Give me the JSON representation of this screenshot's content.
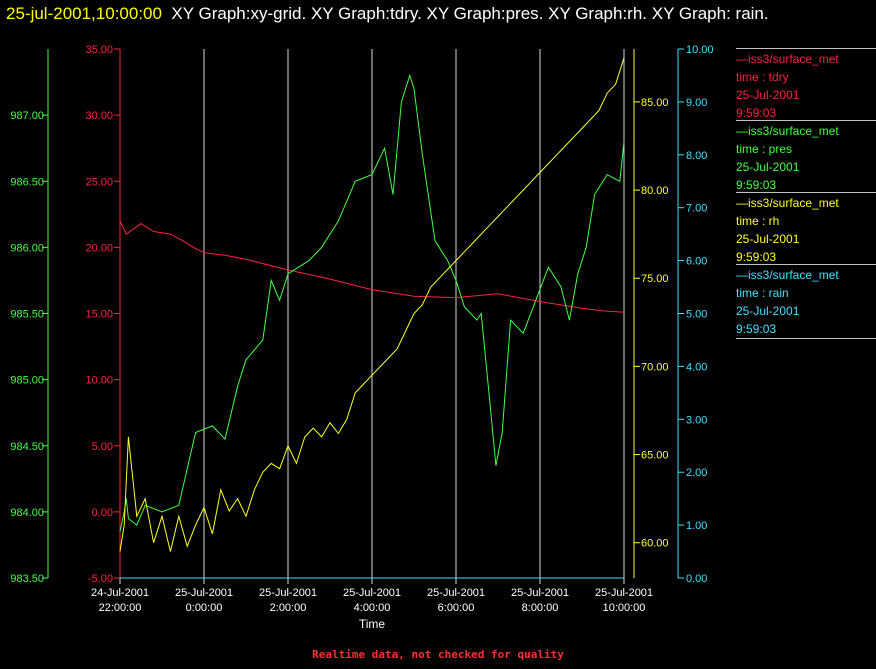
{
  "header": {
    "timestamp": "25-jul-2001,10:00:00",
    "text": "XY Graph:xy-grid.  XY Graph:tdry.  XY Graph:pres.  XY Graph:rh.  XY Graph: rain."
  },
  "footer": "Realtime data, not checked for quality",
  "legend": [
    {
      "line1": "—iss3/surface_met",
      "line2": "time : tdry",
      "line3": "25-Jul-2001",
      "line4": "9:59:03",
      "color": "#ff2040"
    },
    {
      "line1": "—iss3/surface_met",
      "line2": "time : pres",
      "line3": "25-Jul-2001",
      "line4": "9:59:03",
      "color": "#40ff40"
    },
    {
      "line1": "—iss3/surface_met",
      "line2": "time : rh",
      "line3": "25-Jul-2001",
      "line4": "9:59:03",
      "color": "#ffff20"
    },
    {
      "line1": "—iss3/surface_met",
      "line2": "time : rain",
      "line3": "25-Jul-2001",
      "line4": "9:59:03",
      "color": "#40e0ff"
    }
  ],
  "chart_data": {
    "type": "line",
    "xlabel": "Time",
    "grid": true,
    "x_ticks": [
      {
        "line1": "24-Jul-2001",
        "line2": "22:00:00"
      },
      {
        "line1": "25-Jul-2001",
        "line2": "0:00:00"
      },
      {
        "line1": "25-Jul-2001",
        "line2": "2:00:00"
      },
      {
        "line1": "25-Jul-2001",
        "line2": "4:00:00"
      },
      {
        "line1": "25-Jul-2001",
        "line2": "6:00:00"
      },
      {
        "line1": "25-Jul-2001",
        "line2": "8:00:00"
      },
      {
        "line1": "25-Jul-2001",
        "line2": "10:00:00"
      }
    ],
    "x_range_hours": [
      -2,
      10
    ],
    "axes": {
      "tdry": {
        "color": "#ff2040",
        "range": [
          -5,
          35
        ],
        "ticks": [
          "-5.00",
          "0.00",
          "5.00",
          "10.00",
          "15.00",
          "20.00",
          "25.00",
          "30.00",
          "35.00"
        ]
      },
      "pres": {
        "color": "#40ff40",
        "range": [
          983.5,
          987.5
        ],
        "ticks": [
          "983.50",
          "984.00",
          "984.50",
          "985.00",
          "985.50",
          "986.00",
          "986.50",
          "987.00"
        ]
      },
      "rh": {
        "color": "#ffff20",
        "range": [
          58,
          88
        ],
        "ticks": [
          "60.00",
          "65.00",
          "70.00",
          "75.00",
          "80.00",
          "85.00"
        ]
      },
      "rain": {
        "color": "#40e0ff",
        "range": [
          0,
          10
        ],
        "ticks": [
          "0.00",
          "1.00",
          "2.00",
          "3.00",
          "4.00",
          "5.00",
          "6.00",
          "7.00",
          "8.00",
          "9.00",
          "10.00"
        ]
      }
    },
    "series": [
      {
        "name": "iss3/surface_met time : tdry",
        "axis": "tdry",
        "color": "#ff2040",
        "x": [
          -2.0,
          -1.85,
          -1.5,
          -1.2,
          -0.8,
          -0.5,
          -0.2,
          0.0,
          0.5,
          1.0,
          2.0,
          3.0,
          4.0,
          5.0,
          6.0,
          7.0,
          8.0,
          9.0,
          9.5,
          10.0
        ],
        "y": [
          22.0,
          21.0,
          21.8,
          21.2,
          21.0,
          20.5,
          19.9,
          19.6,
          19.4,
          19.1,
          18.3,
          17.6,
          16.8,
          16.3,
          16.2,
          16.5,
          15.9,
          15.4,
          15.2,
          15.1
        ]
      },
      {
        "name": "iss3/surface_met time : pres",
        "axis": "pres",
        "color": "#40ff40",
        "x": [
          -2.0,
          -1.9,
          -1.85,
          -1.8,
          -1.6,
          -1.4,
          -1.0,
          -0.6,
          -0.2,
          0.2,
          0.5,
          0.8,
          1.0,
          1.4,
          1.6,
          1.8,
          2.0,
          2.5,
          2.8,
          3.2,
          3.6,
          4.0,
          4.3,
          4.5,
          4.7,
          4.9,
          5.0,
          5.2,
          5.5,
          5.8,
          6.0,
          6.2,
          6.5,
          6.6,
          6.8,
          6.95,
          7.1,
          7.3,
          7.6,
          7.9,
          8.2,
          8.5,
          8.7,
          8.9,
          9.1,
          9.3,
          9.6,
          9.9,
          10.0
        ],
        "y": [
          983.85,
          984.0,
          984.1,
          983.95,
          983.9,
          984.05,
          984.0,
          984.05,
          984.6,
          984.65,
          984.55,
          984.95,
          985.15,
          985.3,
          985.75,
          985.6,
          985.8,
          985.9,
          986.0,
          986.2,
          986.5,
          986.55,
          986.75,
          986.4,
          987.1,
          987.3,
          987.2,
          986.7,
          986.05,
          985.9,
          985.75,
          985.55,
          985.45,
          985.5,
          984.85,
          984.35,
          984.6,
          985.45,
          985.35,
          985.6,
          985.85,
          985.7,
          985.45,
          985.8,
          986.0,
          986.4,
          986.55,
          986.5,
          986.8
        ]
      },
      {
        "name": "iss3/surface_met time : rh",
        "axis": "rh",
        "color": "#ffff20",
        "x": [
          -2.0,
          -1.9,
          -1.8,
          -1.6,
          -1.4,
          -1.2,
          -1.0,
          -0.8,
          -0.6,
          -0.4,
          -0.2,
          0.0,
          0.2,
          0.4,
          0.6,
          0.8,
          1.0,
          1.2,
          1.4,
          1.6,
          1.8,
          2.0,
          2.2,
          2.4,
          2.6,
          2.8,
          3.0,
          3.2,
          3.4,
          3.6,
          3.8,
          4.0,
          4.2,
          4.4,
          4.6,
          4.8,
          5.0,
          5.2,
          5.4,
          5.6,
          5.8,
          6.0,
          6.2,
          6.4,
          6.6,
          6.8,
          7.0,
          7.2,
          7.4,
          7.6,
          7.8,
          8.0,
          8.2,
          8.4,
          8.6,
          8.8,
          9.0,
          9.2,
          9.4,
          9.6,
          9.8,
          10.0
        ],
        "y": [
          59.5,
          61.0,
          66.0,
          61.5,
          62.5,
          60.0,
          61.5,
          59.5,
          61.5,
          59.8,
          61.0,
          62.0,
          60.5,
          63.0,
          61.8,
          62.5,
          61.5,
          63.0,
          64.0,
          64.5,
          64.2,
          65.5,
          64.5,
          66.0,
          66.5,
          66.0,
          66.8,
          66.2,
          67.0,
          68.5,
          69.0,
          69.5,
          70.0,
          70.5,
          71.0,
          72.0,
          73.0,
          73.5,
          74.5,
          75.0,
          75.5,
          76.0,
          76.5,
          77.0,
          77.5,
          78.0,
          78.5,
          79.0,
          79.5,
          80.0,
          80.5,
          81.0,
          81.5,
          82.0,
          82.5,
          83.0,
          83.5,
          84.0,
          84.5,
          85.5,
          86.0,
          87.5
        ]
      },
      {
        "name": "iss3/surface_met time : rain",
        "axis": "rain",
        "color": "#40e0ff",
        "x": [
          -2.0,
          10.0
        ],
        "y": [
          0.0,
          0.0
        ]
      }
    ]
  }
}
